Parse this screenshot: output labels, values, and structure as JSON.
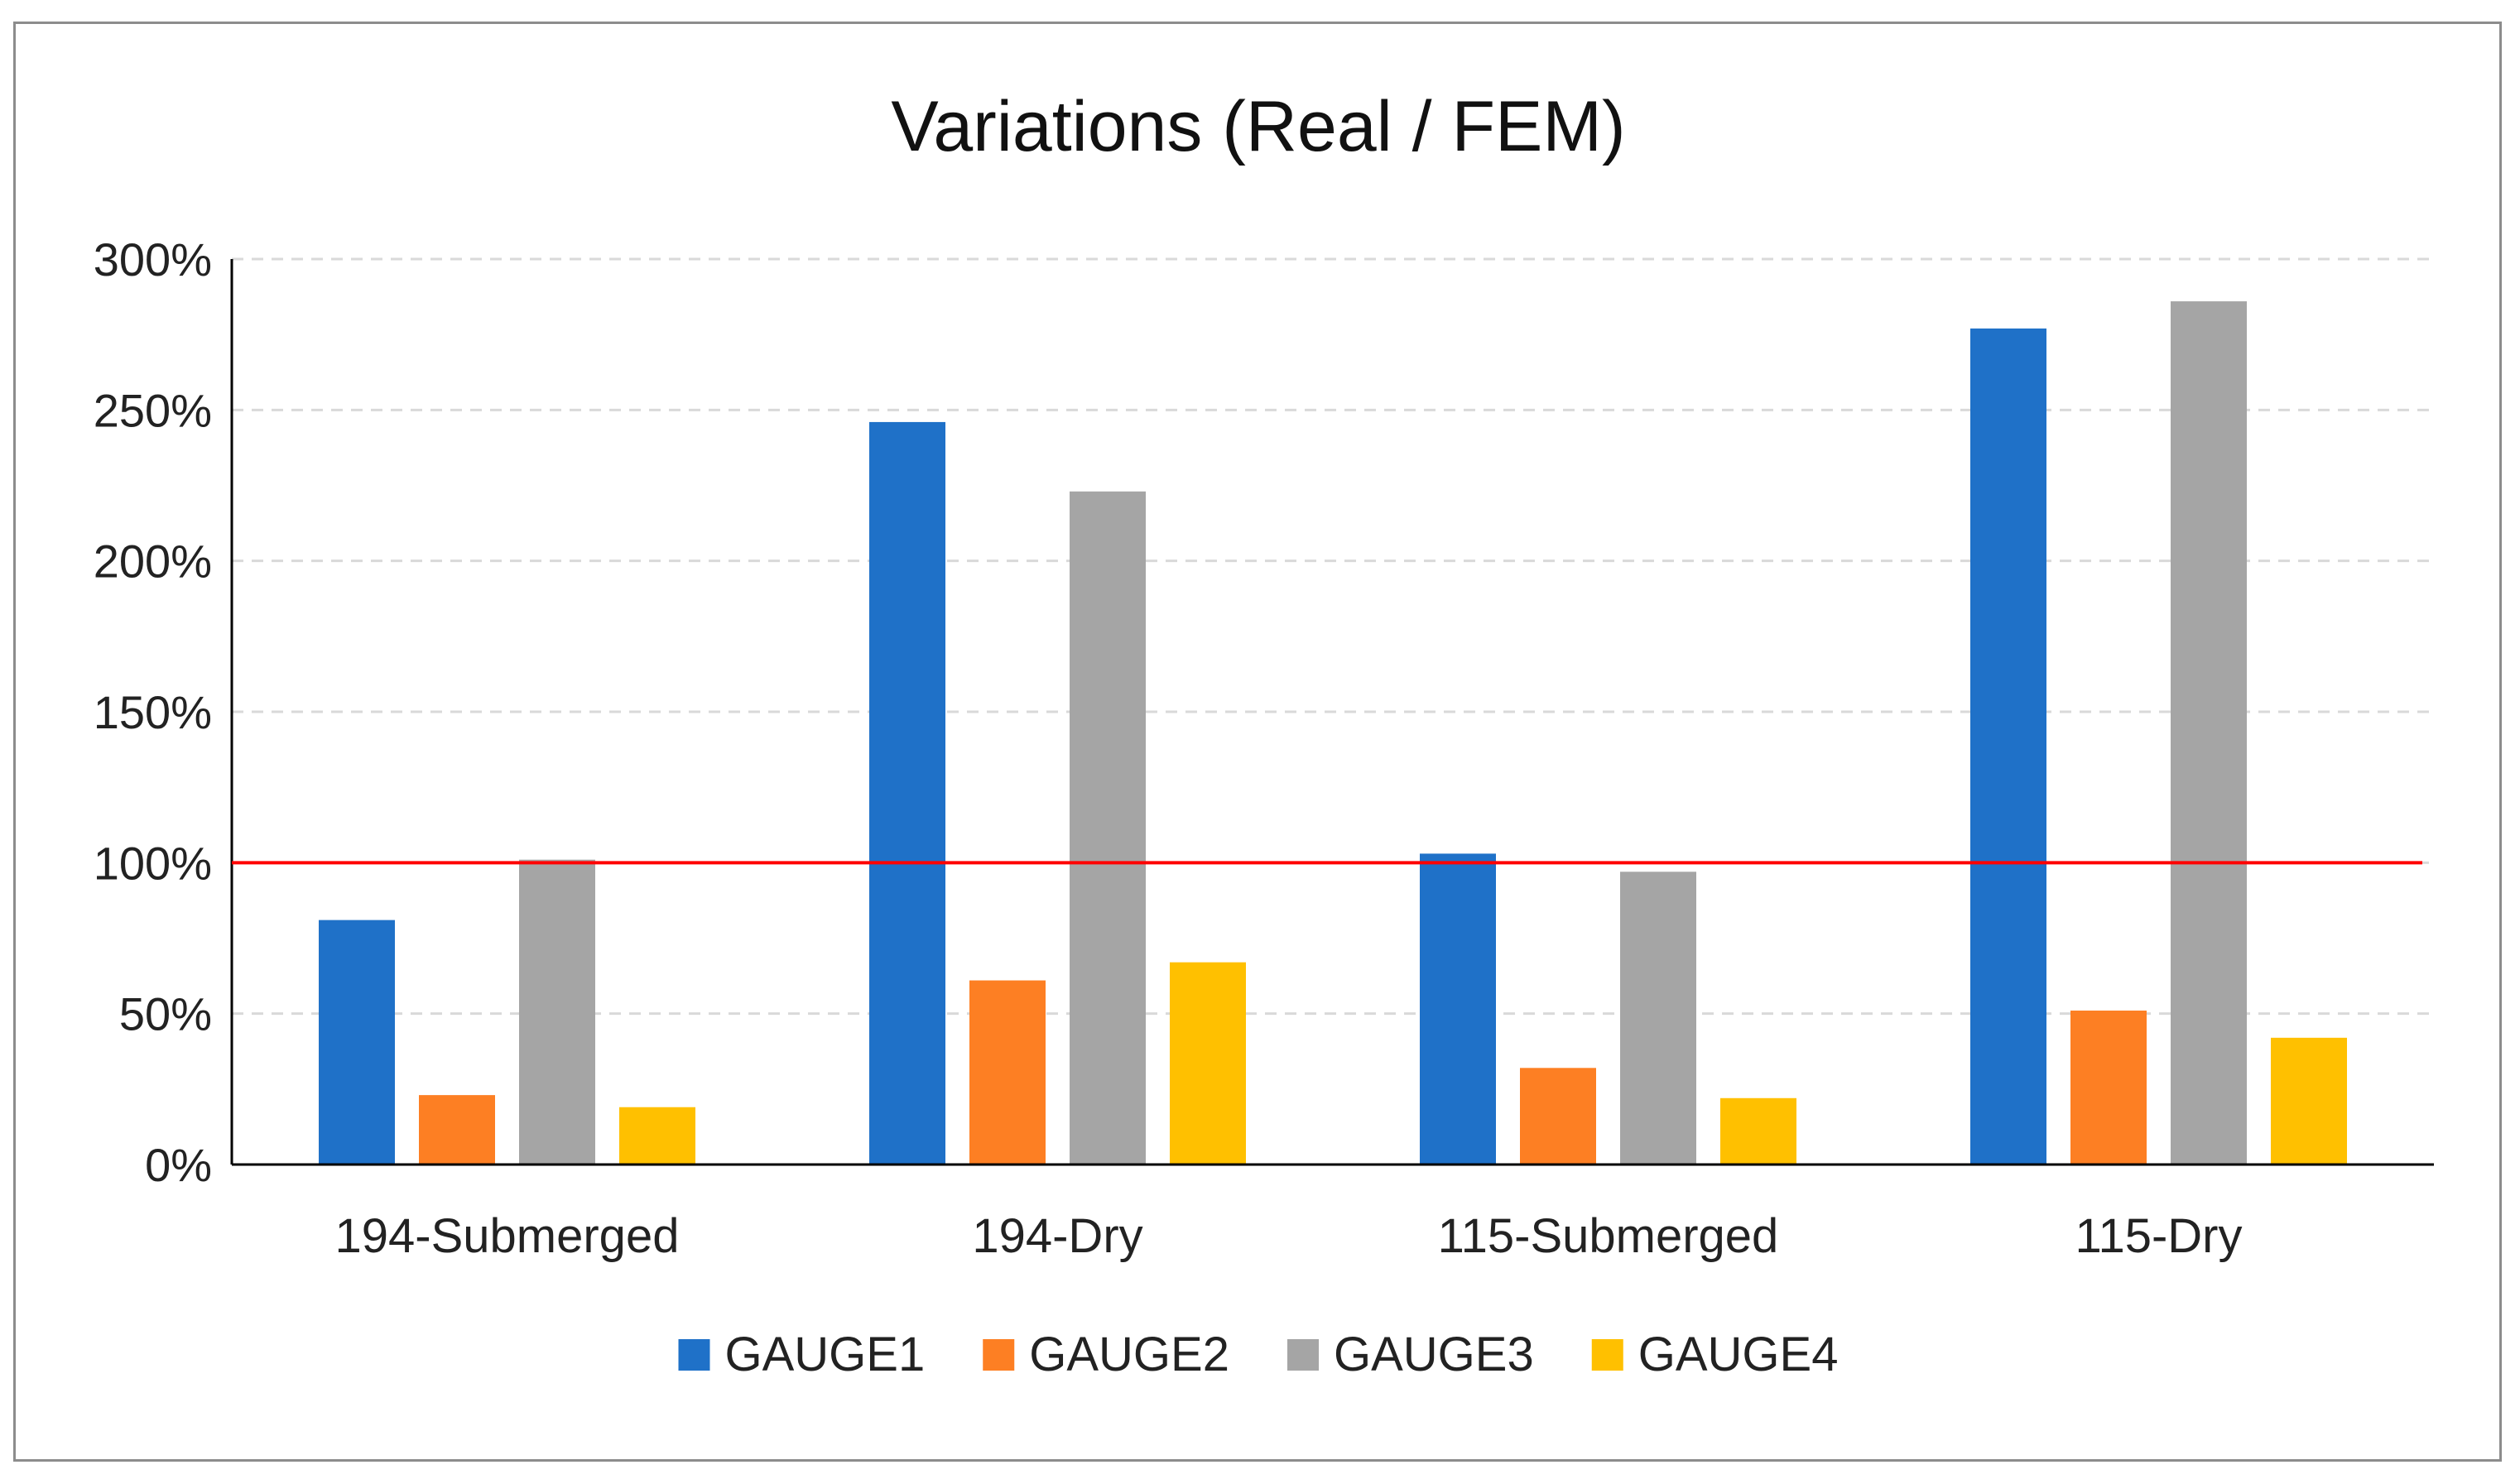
{
  "chart_data": {
    "type": "bar",
    "title": "Variations (Real / FEM)",
    "xlabel": "",
    "ylabel": "",
    "categories": [
      "194-Submerged",
      "194-Dry",
      "115-Submerged",
      "115-Dry"
    ],
    "series": [
      {
        "name": "GAUGE1",
        "color": "#1f71c8",
        "values": [
          81,
          246,
          103,
          277
        ]
      },
      {
        "name": "GAUGE2",
        "color": "#fd7f23",
        "values": [
          23,
          61,
          32,
          51
        ]
      },
      {
        "name": "GAUGE3",
        "color": "#a5a5a5",
        "values": [
          101,
          223,
          97,
          286
        ]
      },
      {
        "name": "GAUGE4",
        "color": "#ffc000",
        "values": [
          19,
          67,
          22,
          42
        ]
      }
    ],
    "ylim": [
      0,
      300
    ],
    "yticks": [
      0,
      50,
      100,
      150,
      200,
      250,
      300
    ],
    "ytick_labels": [
      "0%",
      "50%",
      "100%",
      "150%",
      "200%",
      "250%",
      "300%"
    ],
    "reference_line": {
      "value": 100,
      "color": "#ff0000"
    },
    "grid": "horizontal dashed",
    "legend_position": "bottom"
  }
}
